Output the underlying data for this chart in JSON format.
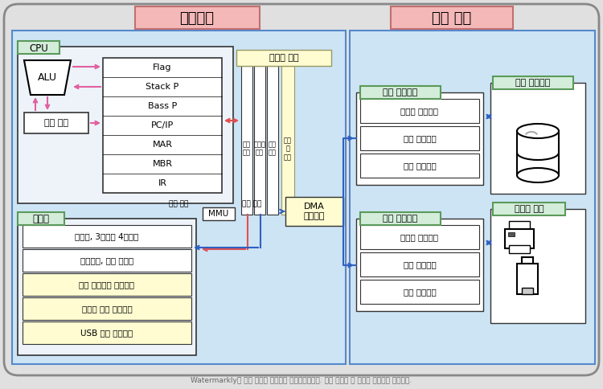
{
  "bg_outer": "#e0e0e0",
  "bg_mainboard": "#cde4f5",
  "bg_peripheral": "#cde4f5",
  "label_pink_bg": "#f5b8b8",
  "label_pink_ec": "#c07070",
  "label_green_bg": "#d4edda",
  "label_green_ec": "#5a9a5a",
  "arrow_pink": "#e060a0",
  "arrow_red": "#e05050",
  "arrow_blue": "#3060c0",
  "bus_yellow": "#fefcd0",
  "mem_yellow": "#fefcd0",
  "title_mainboard": "메인보드",
  "title_peripheral": "주변 장치",
  "label_cpu": "CPU",
  "label_memory": "메모리",
  "label_alu": "ALU",
  "label_control": "제어 장치",
  "label_flag": "Flag",
  "label_stackp": "Stack P",
  "label_bassp": "Bass P",
  "label_pcip": "PC/IP",
  "label_mar": "MAR",
  "label_mbr": "MBR",
  "label_ir": "IR",
  "label_system_bus": "시스템 버스",
  "label_addr_bus": "주소\n버스",
  "label_data_bus": "데이터\n버스",
  "label_ctrl_bus": "제어\n버스",
  "label_io_bus": "입출력\n버스",
  "label_dma": "DMA\n컨트롤러",
  "label_mmu": "MMU",
  "label_logical_addr": "논리 주소",
  "label_physical_addr": "물리 주소",
  "label_device_ctrl1": "장치 컨트롤러",
  "label_device_ctrl2": "장치 컨트롤러",
  "label_data_reg": "데이터 레지스터",
  "label_status_reg": "상태 레지스터",
  "label_control_reg": "제어 레지스터",
  "label_storage": "보조 기억장치",
  "label_iodev": "입출력 장치",
  "mem_line1": "더하라, 3번지와 4번지를",
  "mem_line2": "저장하라, 연산 결과를",
  "mem_line3": "보조 기억장치 드라이버",
  "mem_line4": "프린터 장치 드라이버",
  "mem_line5": "USB 장치 드라이버",
  "watermark": "Watermarkly의 무료 버전을 사용하여 처리되었습니다. 유료 버전은 이 마크를 추가하지 않습니다."
}
